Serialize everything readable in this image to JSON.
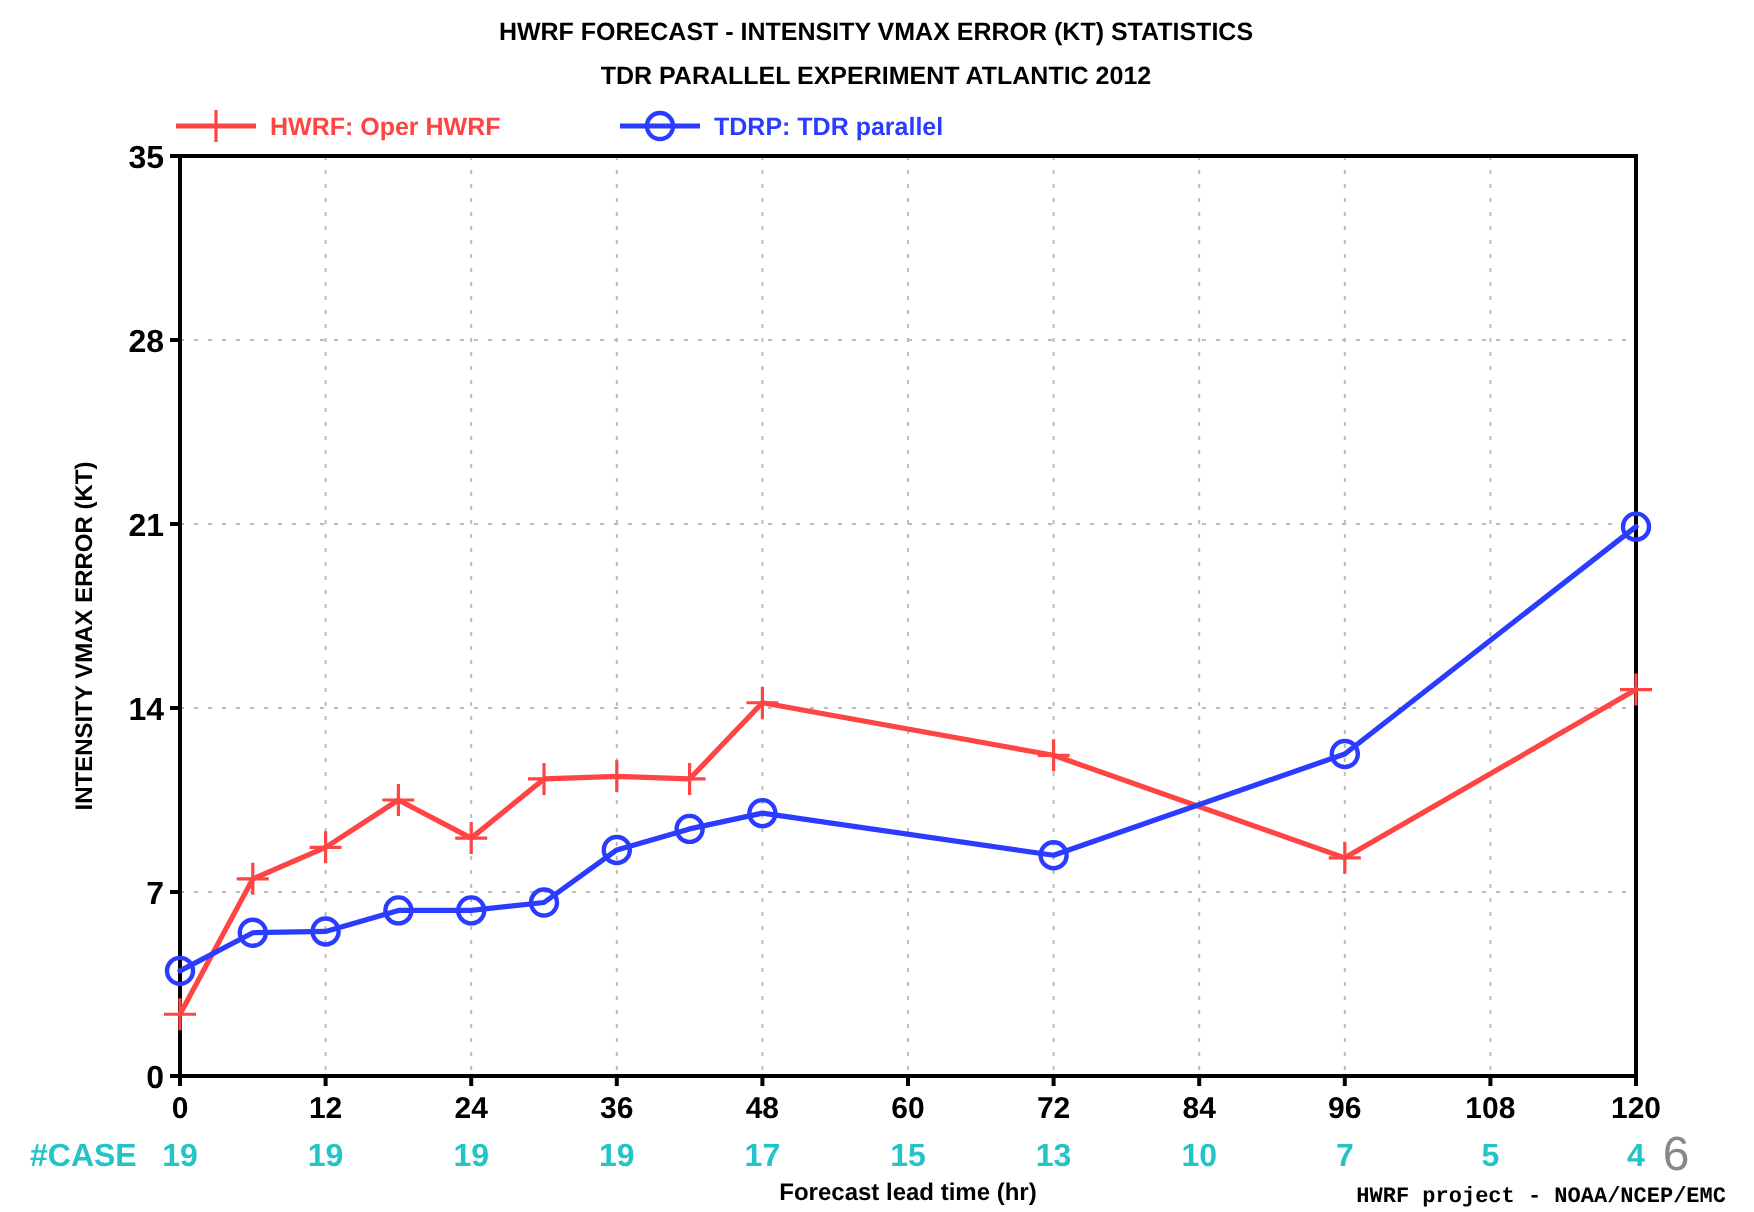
{
  "chart_data": {
    "type": "line",
    "title": "HWRF FORECAST - INTENSITY VMAX ERROR (KT) STATISTICS",
    "subtitle": "TDR PARALLEL EXPERIMENT ATLANTIC 2012",
    "xlabel": "Forecast lead time (hr)",
    "ylabel": "INTENSITY VMAX ERROR (KT)",
    "series": [
      {
        "name": "HWRF: Oper HWRF",
        "color": "#ff4444",
        "marker": "cross",
        "x": [
          0,
          6,
          12,
          18,
          24,
          30,
          36,
          42,
          48,
          72,
          96,
          120
        ],
        "values": [
          2.35,
          7.5,
          8.7,
          10.5,
          9.05,
          11.3,
          11.4,
          11.3,
          14.2,
          12.2,
          8.3,
          14.7
        ]
      },
      {
        "name": "TDRP: TDR parallel",
        "color": "#2a3cff",
        "marker": "circle",
        "x": [
          0,
          6,
          12,
          18,
          24,
          30,
          36,
          42,
          48,
          72,
          96,
          120
        ],
        "values": [
          4.0,
          5.45,
          5.5,
          6.3,
          6.3,
          6.6,
          8.6,
          9.4,
          10.0,
          8.4,
          12.25,
          20.9
        ]
      }
    ],
    "xlim": [
      0,
      120
    ],
    "xticks": [
      0,
      12,
      24,
      36,
      48,
      60,
      72,
      84,
      96,
      108,
      120
    ],
    "ylim": [
      0,
      35
    ],
    "yticks": [
      0,
      7,
      14,
      21,
      28,
      35
    ],
    "grid": true,
    "legend": "top left",
    "line_style": "solid",
    "annotations": [
      "#CASE",
      "19",
      "19",
      "19",
      "19",
      "17",
      "15",
      "13",
      "10",
      "7",
      "5",
      "4",
      "HWRF project - NOAA/NCEP/EMC",
      "6"
    ]
  }
}
